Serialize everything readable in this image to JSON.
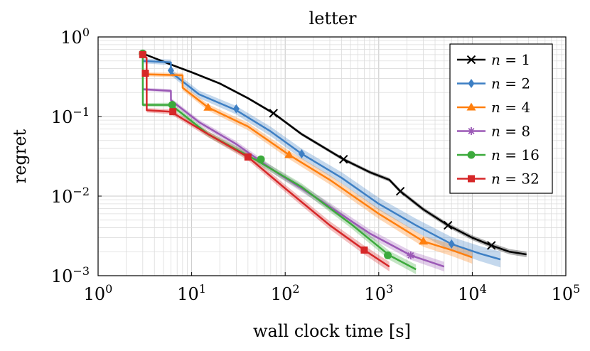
{
  "chart_data": {
    "type": "line",
    "title": "letter",
    "xlabel": "wall clock time [s]",
    "ylabel": "regret",
    "xscale": "log",
    "yscale": "log",
    "xlim": [
      1,
      100000
    ],
    "ylim": [
      0.001,
      1
    ],
    "x_ticks": [
      {
        "value": 1,
        "base": "10",
        "exp": "0"
      },
      {
        "value": 10,
        "base": "10",
        "exp": "1"
      },
      {
        "value": 100,
        "base": "10",
        "exp": "2"
      },
      {
        "value": 1000,
        "base": "10",
        "exp": "3"
      },
      {
        "value": 10000,
        "base": "10",
        "exp": "4"
      },
      {
        "value": 100000,
        "base": "10",
        "exp": "5"
      }
    ],
    "y_ticks": [
      {
        "value": 1,
        "base": "10",
        "exp": "0"
      },
      {
        "value": 0.1,
        "base": "10",
        "exp": "−1"
      },
      {
        "value": 0.01,
        "base": "10",
        "exp": "−2"
      },
      {
        "value": 0.001,
        "base": "10",
        "exp": "−3"
      }
    ],
    "grid": true,
    "legend_position": "top-right",
    "series": [
      {
        "name": "n = 1",
        "var": "n",
        "eq": "=",
        "num": "1",
        "color": "#000000",
        "marker": "x",
        "x": [
          3,
          6,
          10,
          20,
          40,
          75,
          150,
          420,
          800,
          1300,
          1700,
          3000,
          5500,
          10000,
          16000,
          25000,
          38000
        ],
        "y": [
          0.62,
          0.45,
          0.36,
          0.26,
          0.17,
          0.11,
          0.06,
          0.029,
          0.02,
          0.016,
          0.0115,
          0.0068,
          0.0043,
          0.003,
          0.0024,
          0.002,
          0.00185
        ],
        "markers_x": [
          75,
          420,
          1700,
          5500,
          16000
        ],
        "markers_y": [
          0.11,
          0.029,
          0.0115,
          0.0043,
          0.0024
        ],
        "band": 0.035
      },
      {
        "name": "n = 2",
        "var": "n",
        "eq": "=",
        "num": "2",
        "color": "#3d7fc4",
        "marker": "diamond",
        "x": [
          3,
          6,
          6.01,
          12,
          30,
          70,
          150,
          400,
          1000,
          2500,
          6000,
          12000,
          20000
        ],
        "y": [
          0.5,
          0.48,
          0.36,
          0.19,
          0.12,
          0.065,
          0.034,
          0.017,
          0.008,
          0.0043,
          0.0025,
          0.0019,
          0.0016
        ],
        "markers_x": [
          6,
          30,
          150,
          6000
        ],
        "markers_y": [
          0.38,
          0.125,
          0.034,
          0.0025
        ],
        "band": 0.1
      },
      {
        "name": "n = 4",
        "var": "n",
        "eq": "=",
        "num": "4",
        "color": "#ff7f0e",
        "marker": "triangle",
        "x": [
          3,
          8,
          8.01,
          15,
          40,
          110,
          300,
          1000,
          3000,
          6000,
          10000
        ],
        "y": [
          0.34,
          0.33,
          0.23,
          0.13,
          0.075,
          0.033,
          0.016,
          0.006,
          0.0027,
          0.0021,
          0.0017
        ],
        "markers_x": [
          15,
          110,
          3000
        ],
        "markers_y": [
          0.13,
          0.033,
          0.0027
        ],
        "band": 0.08
      },
      {
        "name": "n = 8",
        "var": "n",
        "eq": "=",
        "num": "8",
        "color": "#9b59b6",
        "marker": "star",
        "x": [
          3,
          6,
          6.01,
          12,
          30,
          80,
          250,
          800,
          2200,
          5000
        ],
        "y": [
          0.22,
          0.21,
          0.16,
          0.085,
          0.045,
          0.02,
          0.0085,
          0.0034,
          0.0018,
          0.0013
        ],
        "markers_x": [
          2200
        ],
        "markers_y": [
          0.0018
        ],
        "band": 0.06
      },
      {
        "name": "n = 16",
        "var": "n",
        "eq": "=",
        "num": "16",
        "color": "#3caa3c",
        "marker": "circle",
        "x": [
          3,
          3.01,
          6,
          6.01,
          15,
          50,
          150,
          500,
          1300,
          2500
        ],
        "y": [
          0.62,
          0.14,
          0.14,
          0.14,
          0.06,
          0.028,
          0.013,
          0.0045,
          0.0018,
          0.0012
        ],
        "markers_x": [
          3,
          6.2,
          55,
          1250
        ],
        "markers_y": [
          0.62,
          0.14,
          0.029,
          0.0018
        ],
        "band": 0.06
      },
      {
        "name": "n = 32",
        "var": "n",
        "eq": "=",
        "num": "32",
        "color": "#d62728",
        "marker": "square",
        "x": [
          3,
          3.3,
          3.31,
          6,
          15,
          40,
          100,
          300,
          700,
          1300
        ],
        "y": [
          0.6,
          0.55,
          0.12,
          0.115,
          0.06,
          0.031,
          0.0125,
          0.0043,
          0.0021,
          0.0013
        ],
        "markers_x": [
          3,
          3.2,
          6.3,
          40,
          700
        ],
        "markers_y": [
          0.6,
          0.35,
          0.115,
          0.031,
          0.0021
        ],
        "band": 0.06
      }
    ]
  }
}
